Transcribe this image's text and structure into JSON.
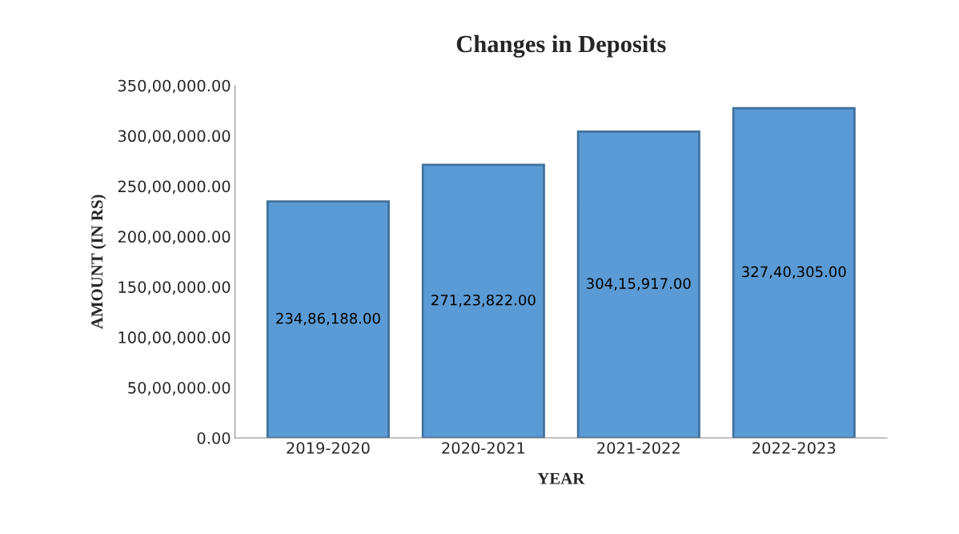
{
  "chart_data": {
    "type": "bar",
    "title": "Changes in Deposits",
    "xlabel": "YEAR",
    "ylabel": "AMOUNT (IN RS)",
    "categories": [
      "2019-2020",
      "2020-2021",
      "2021-2022",
      "2022-2023"
    ],
    "values": [
      23486188,
      27123822,
      30415917,
      32740305
    ],
    "value_labels": [
      "234,86,188.00",
      "271,23,822.00",
      "304,15,917.00",
      "327,40,305.00"
    ],
    "color": "#5b9bd5",
    "ylim": [
      0,
      35000000
    ],
    "yticks": [
      {
        "value": 0,
        "label": "0.00"
      },
      {
        "value": 5000000,
        "label": "50,00,000.00"
      },
      {
        "value": 10000000,
        "label": "100,00,000.00"
      },
      {
        "value": 15000000,
        "label": "150,00,000.00"
      },
      {
        "value": 20000000,
        "label": "200,00,000.00"
      },
      {
        "value": 25000000,
        "label": "250,00,000.00"
      },
      {
        "value": 30000000,
        "label": "300,00,000.00"
      },
      {
        "value": 35000000,
        "label": "350,00,000.00"
      }
    ],
    "grid": false,
    "legend": false
  }
}
